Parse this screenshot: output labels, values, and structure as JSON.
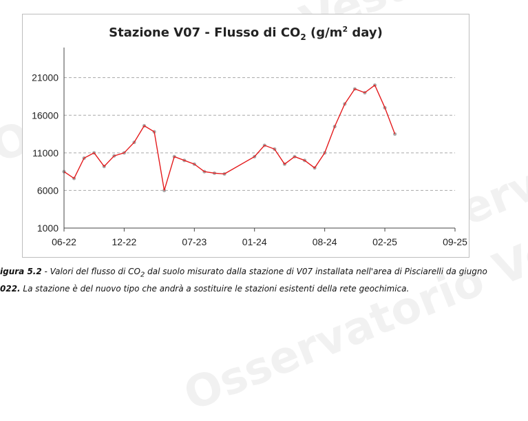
{
  "watermark": {
    "text": "Osservatorio Vesuviano"
  },
  "chart_data": {
    "type": "scatter",
    "title": {
      "main": "Stazione V07 - Flusso di CO",
      "sub": "2",
      "rest": " (g/m",
      "sup": "2",
      "tail": " day)"
    },
    "xlabel": "",
    "ylabel": "",
    "x_ticks": [
      "06-22",
      "12-22",
      "07-23",
      "01-24",
      "08-24",
      "02-25",
      "09-25"
    ],
    "xlim": [
      "2022-06",
      "2025-09"
    ],
    "y_ticks": [
      1000,
      6000,
      11000,
      16000,
      21000
    ],
    "ylim": [
      1000,
      25000
    ],
    "grid": "horizontal-dashed",
    "legend": "none",
    "series": [
      {
        "kind": "scatter",
        "color": "#9e9e9e",
        "x": [
          "2022-06",
          "2022-07",
          "2022-08",
          "2022-09",
          "2022-10",
          "2022-11",
          "2022-12",
          "2023-01",
          "2023-02",
          "2023-03",
          "2023-04",
          "2023-05",
          "2023-06",
          "2023-07",
          "2023-08",
          "2023-09",
          "2023-10",
          "2024-01",
          "2024-02",
          "2024-03",
          "2024-04",
          "2024-05",
          "2024-06",
          "2024-07",
          "2024-08",
          "2024-09",
          "2024-10",
          "2024-11",
          "2024-12",
          "2025-01",
          "2025-02",
          "2025-03"
        ],
        "values": [
          8500,
          7600,
          10300,
          11000,
          9200,
          10600,
          11000,
          12400,
          14600,
          13800,
          6000,
          10500,
          10000,
          9500,
          8500,
          8300,
          8200,
          10500,
          12000,
          11500,
          9500,
          10500,
          10000,
          9000,
          11000,
          14500,
          17500,
          19500,
          19000,
          20000,
          17000,
          13500
        ]
      },
      {
        "kind": "line",
        "color": "#e41a1c",
        "x": [
          "2022-06",
          "2022-07",
          "2022-08",
          "2022-09",
          "2022-10",
          "2022-11",
          "2022-12",
          "2023-01",
          "2023-02",
          "2023-03",
          "2023-04",
          "2023-05",
          "2023-06",
          "2023-07",
          "2023-08",
          "2023-09",
          "2023-10",
          "2024-01",
          "2024-02",
          "2024-03",
          "2024-04",
          "2024-05",
          "2024-06",
          "2024-07",
          "2024-08",
          "2024-09",
          "2024-10",
          "2024-11",
          "2024-12",
          "2025-01",
          "2025-02",
          "2025-03"
        ],
        "values": [
          8500,
          7600,
          10300,
          11000,
          9200,
          10600,
          11000,
          12400,
          14600,
          13800,
          6000,
          10500,
          10000,
          9500,
          8500,
          8300,
          8200,
          10500,
          12000,
          11500,
          9500,
          10500,
          10000,
          9000,
          11000,
          14500,
          17500,
          19500,
          19000,
          20000,
          17000,
          13500
        ]
      }
    ]
  },
  "caption": {
    "label": "igura 5.2",
    "line1_text": " - Valori del flusso di CO",
    "line1_sub": "2",
    "line1_rest": " dal suolo misurato dalla stazione di V07 installata nell'area di Pisciarelli da giugno",
    "line2_bold": "022.",
    "line2_text": " La stazione è del nuovo tipo che andrà a sostituire le stazioni esistenti della rete geochimica."
  }
}
